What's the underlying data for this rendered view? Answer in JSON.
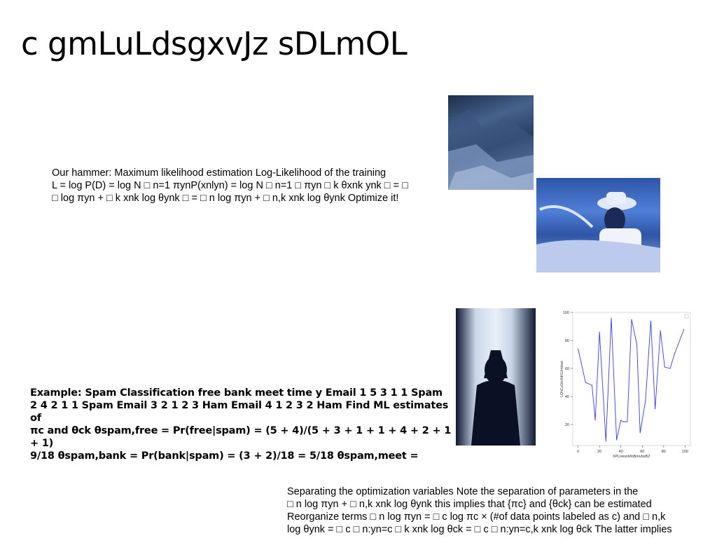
{
  "slide": {
    "title": "c gmLuLdsgxvJz sDLmOL",
    "block1": "Our hammer: Maximum likelihood estimation Log-Likelihood of the training\nL = log P(D) = log N □ n=1 πynP(xnlyn) = log N □ n=1 □ πyn □ k θxnk ynk □ = □\n□ log πyn + □ k xnk log θynk □ = □ n log πyn + □ n,k xnk log θynk Optimize it!",
    "block2": "Example: Spam Classification free bank meet time y Email 1 5 3 1 1 Spam\n2 4 2 1 1 Spam Email 3 2 1 2 3 Ham Email 4 1 2 3 2 Ham Find ML estimates of\nπc and θck θspam,free = Pr(free|spam) = (5 + 4)/(5 + 3 + 1 + 1 + 4 + 2 + 1 + 1)\n9/18 θspam,bank = Pr(bank|spam) = (3 + 2)/18 = 5/18 θspam,meet =",
    "block3": "Separating the optimization variables Note the separation of parameters in the\n□ n log πyn + □ n,k xnk log θynk this implies that {πc} and {θck} can be estimated\nReorganize terms □ n log πyn = □ c log πc × (#of data points labeled as c) and □ n,k\nlog θynk = □ c □ n:yn=c □ k xnk log θck = □ c □ n:yn=c,k xnk log θck The latter implies"
  },
  "chart_data": {
    "type": "line",
    "title": "",
    "xlabel": "hPLnesnMnBmvbsBZ",
    "ylabel": "LOhCuGbrIhKGJmkxet",
    "x": [
      0,
      7,
      13,
      16,
      20,
      26,
      31,
      36,
      40,
      42,
      46,
      50,
      55,
      58,
      63,
      68,
      72,
      77,
      81,
      86,
      90,
      99
    ],
    "y": [
      74,
      50,
      48,
      23,
      86,
      8,
      96,
      9,
      23,
      22,
      22,
      95,
      77,
      14,
      37,
      94,
      31,
      87,
      61,
      60,
      70,
      88
    ],
    "xlim": [
      -5,
      105
    ],
    "ylim": [
      5,
      100
    ],
    "xticks": [
      0,
      20,
      40,
      60,
      80,
      100
    ],
    "yticks": [
      20,
      40,
      60,
      80,
      100
    ],
    "line_color": "#3a3ae0"
  }
}
